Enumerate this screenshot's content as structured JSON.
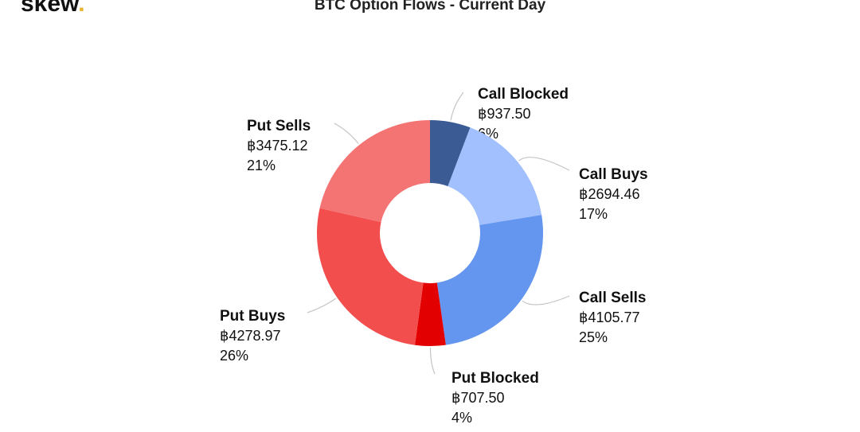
{
  "brand": {
    "name": "skew",
    "dot": "."
  },
  "chart_data": {
    "type": "donut",
    "title": "BTC Option Flows - Current Day",
    "categories": [
      "Call Blocked",
      "Call Buys",
      "Call Sells",
      "Put Blocked",
      "Put Buys",
      "Put Sells"
    ],
    "values": [
      937.5,
      2694.46,
      4105.77,
      707.5,
      4278.97,
      3475.12
    ],
    "value_labels": [
      "฿937.50",
      "฿2694.46",
      "฿4105.77",
      "฿707.50",
      "฿4278.97",
      "฿3475.12"
    ],
    "percent_labels": [
      "6%",
      "17%",
      "25%",
      "4%",
      "26%",
      "21%"
    ],
    "colors": [
      "#3b5b95",
      "#a2c0fd",
      "#6495ef",
      "#e20000",
      "#f24e4e",
      "#f47474"
    ]
  }
}
